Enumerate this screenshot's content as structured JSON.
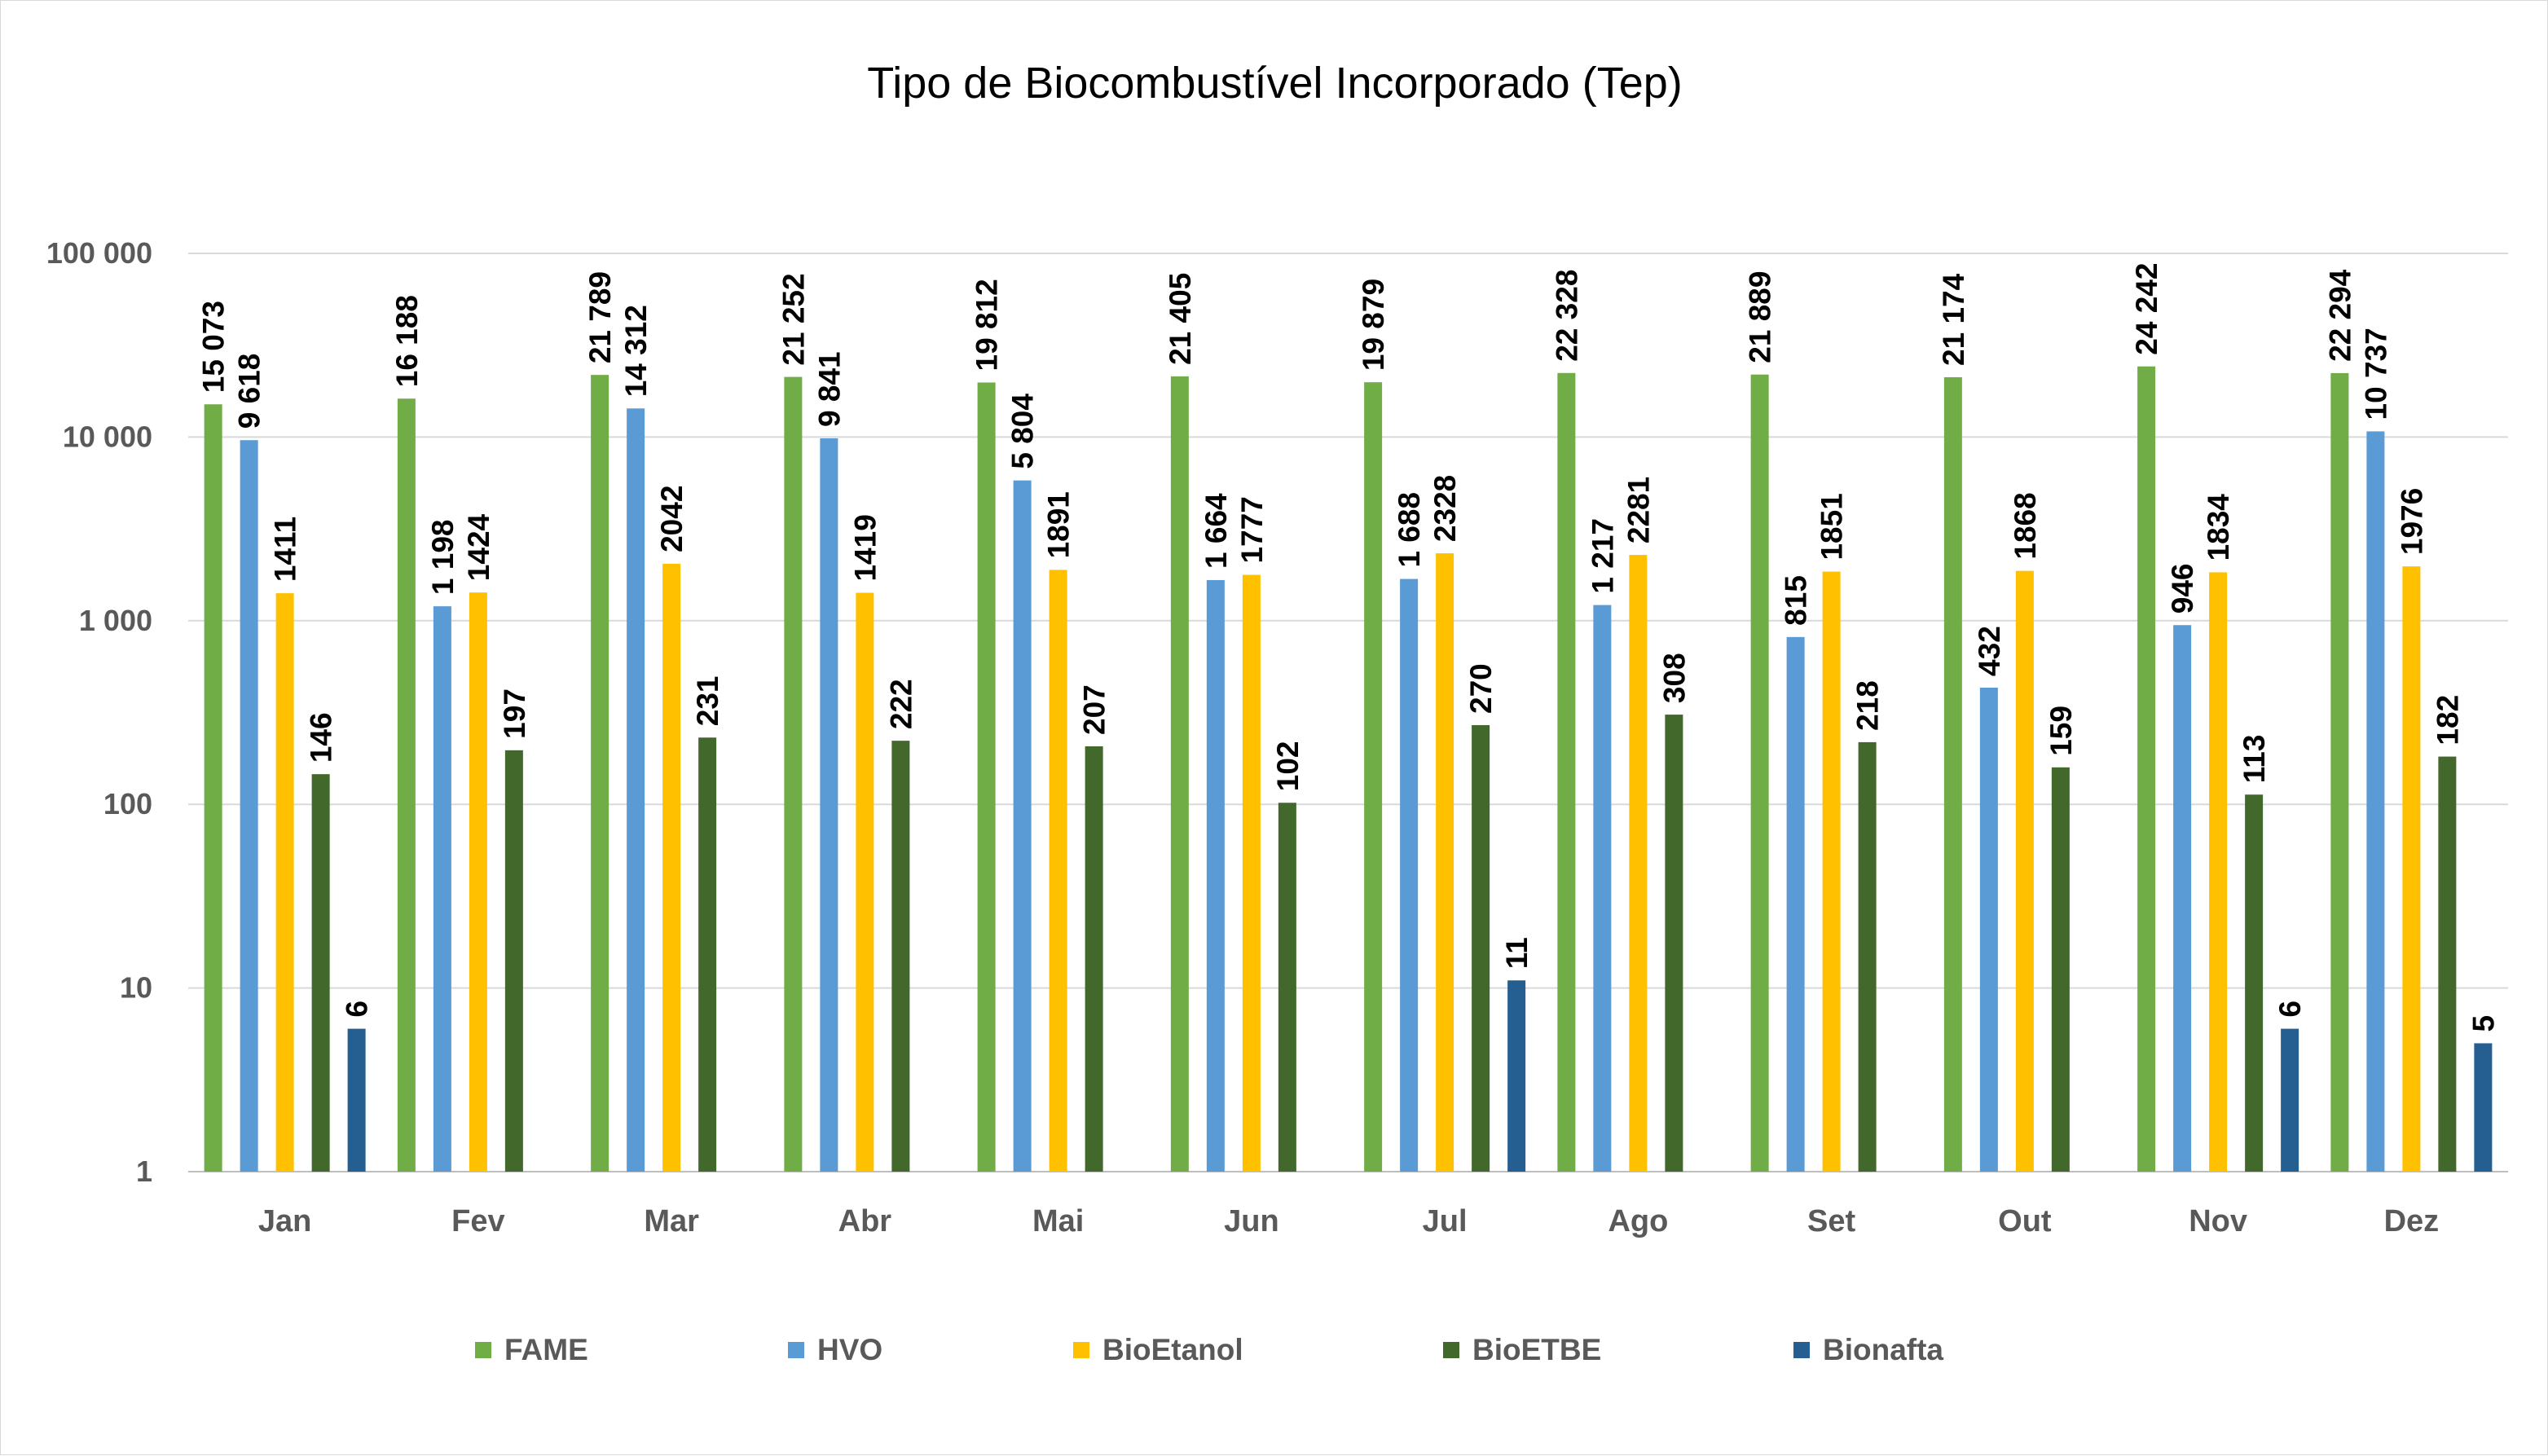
{
  "chart_data": {
    "type": "bar",
    "title": "Tipo de Biocombustível Incorporado (Tep)",
    "xlabel": "",
    "ylabel": "",
    "y_scale": "log",
    "ylim": [
      1,
      100000
    ],
    "yticks": [
      {
        "value": 1,
        "label": "1"
      },
      {
        "value": 10,
        "label": "10"
      },
      {
        "value": 100,
        "label": "100"
      },
      {
        "value": 1000,
        "label": "1 000"
      },
      {
        "value": 10000,
        "label": "10 000"
      },
      {
        "value": 100000,
        "label": "100 000"
      }
    ],
    "grid": true,
    "legend_position": "bottom",
    "categories": [
      "Jan",
      "Fev",
      "Mar",
      "Abr",
      "Mai",
      "Jun",
      "Jul",
      "Ago",
      "Set",
      "Out",
      "Nov",
      "Dez"
    ],
    "series": [
      {
        "name": "FAME",
        "color": "#70AD47",
        "values": [
          15073,
          16188,
          21789,
          21252,
          19812,
          21405,
          19879,
          22328,
          21889,
          21174,
          24242,
          22294
        ],
        "labels": [
          "15 073",
          "16 188",
          "21 789",
          "21 252",
          "19 812",
          "21 405",
          "19 879",
          "22 328",
          "21 889",
          "21 174",
          "24 242",
          "22 294"
        ]
      },
      {
        "name": "HVO",
        "color": "#5B9BD5",
        "values": [
          9618,
          1198,
          14312,
          9841,
          5804,
          1664,
          1688,
          1217,
          815,
          432,
          946,
          10737
        ],
        "labels": [
          "9 618",
          "1 198",
          "14 312",
          "9 841",
          "5 804",
          "1 664",
          "1 688",
          "1 217",
          "815",
          "432",
          "946",
          "10 737"
        ]
      },
      {
        "name": "BioEtanol",
        "color": "#FFC000",
        "values": [
          1411,
          1424,
          2042,
          1419,
          1891,
          1777,
          2328,
          2281,
          1851,
          1868,
          1834,
          1976
        ],
        "labels": [
          "1411",
          "1424",
          "2042",
          "1419",
          "1891",
          "1777",
          "2328",
          "2281",
          "1851",
          "1868",
          "1834",
          "1976"
        ]
      },
      {
        "name": "BioETBE",
        "color": "#43682B",
        "values": [
          146,
          197,
          231,
          222,
          207,
          102,
          270,
          308,
          218,
          159,
          113,
          182
        ],
        "labels": [
          "146",
          "197",
          "231",
          "222",
          "207",
          "102",
          "270",
          "308",
          "218",
          "159",
          "113",
          "182"
        ]
      },
      {
        "name": "Bionafta",
        "color": "#255E91",
        "values": [
          6,
          null,
          null,
          null,
          null,
          null,
          11,
          null,
          null,
          null,
          6,
          5
        ],
        "labels": [
          "6",
          "",
          "",
          "",
          "",
          "",
          "11",
          "",
          "",
          "",
          "6",
          "5"
        ]
      }
    ]
  }
}
